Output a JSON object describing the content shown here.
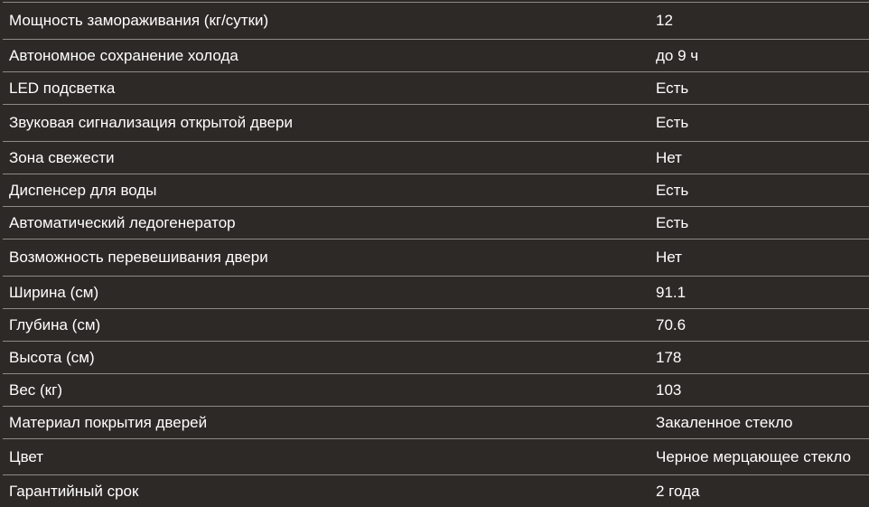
{
  "specs": [
    {
      "label": "Мощность замораживания (кг/сутки)",
      "value": "12"
    },
    {
      "label": "Автономное сохранение холода",
      "value": "до 9 ч"
    },
    {
      "label": "LED подсветка",
      "value": "Есть"
    },
    {
      "label": "Звуковая сигнализация открытой двери",
      "value": "Есть"
    },
    {
      "label": "Зона свежести",
      "value": "Нет"
    },
    {
      "label": "Диспенсер для воды",
      "value": "Есть"
    },
    {
      "label": "Автоматический ледогенератор",
      "value": "Есть"
    },
    {
      "label": "Возможность перевешивания двери",
      "value": "Нет"
    },
    {
      "label": "Ширина (см)",
      "value": "91.1"
    },
    {
      "label": "Глубина (см)",
      "value": "70.6"
    },
    {
      "label": "Высота (см)",
      "value": "178"
    },
    {
      "label": "Вес (кг)",
      "value": "103"
    },
    {
      "label": "Материал покрытия дверей",
      "value": "Закаленное стекло"
    },
    {
      "label": "Цвет",
      "value": "Черное мерцающее стекло"
    },
    {
      "label": "Гарантийный срок",
      "value": "2 года"
    }
  ]
}
